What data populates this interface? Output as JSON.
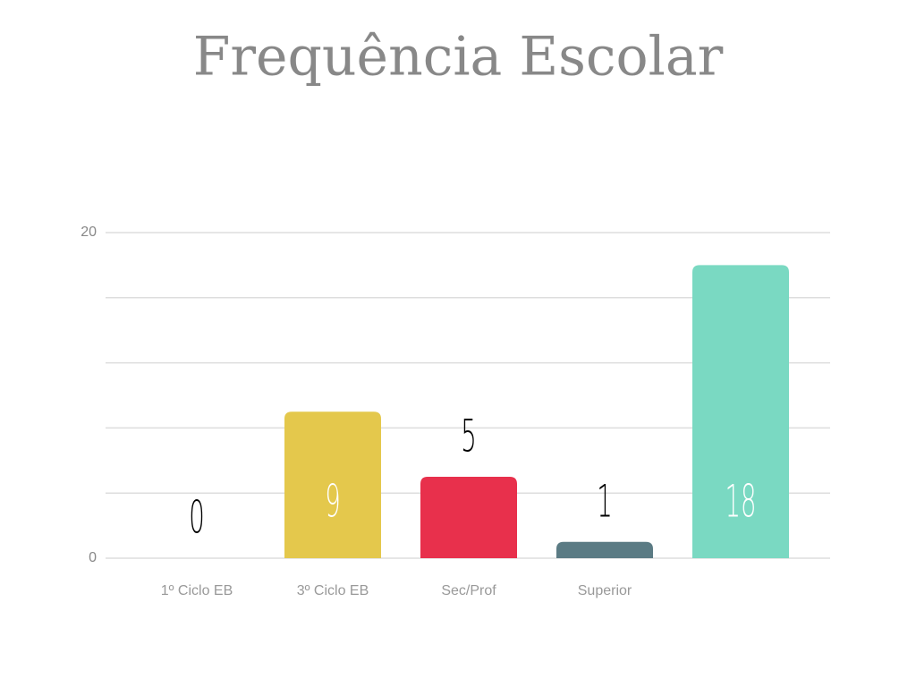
{
  "chart_data": {
    "type": "bar",
    "title": "Frequência Escolar",
    "categories": [
      "1º Ciclo EB",
      "3º Ciclo EB",
      "Sec/Prof",
      "Superior",
      null
    ],
    "values": [
      0,
      9,
      5,
      1,
      18
    ],
    "colors": [
      "#8e8e8e",
      "#e4c84c",
      "#e8304c",
      "#5b7b84",
      "#7ad9c2"
    ],
    "ylim": [
      0,
      20
    ],
    "yticks": [
      0,
      20
    ],
    "minor_yticks": [
      4,
      8,
      12,
      16
    ],
    "grid": true
  }
}
